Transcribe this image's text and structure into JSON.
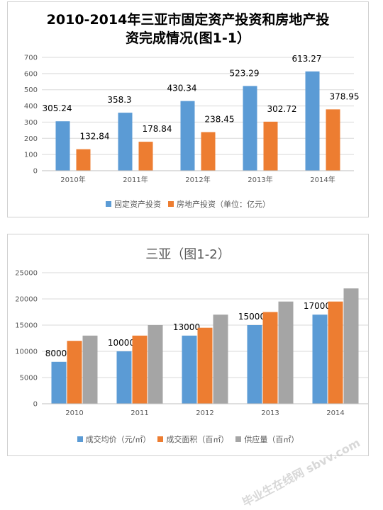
{
  "chart_data": [
    {
      "type": "bar",
      "title_line1": "2010-2014年三亚市固定资产投资和房地产投",
      "title_line2": "资完成情况(图1-1）",
      "categories": [
        "2010年",
        "2011年",
        "2012年",
        "2013年",
        "2014年"
      ],
      "series": [
        {
          "name": "固定资产投资",
          "color": "#5b9bd5",
          "values": [
            305.24,
            358.3,
            430.34,
            523.29,
            613.27
          ],
          "labels": [
            "305.24",
            "358.3",
            "430.34",
            "523.29",
            "613.27"
          ]
        },
        {
          "name": "房地产投资（单位：亿元）",
          "color": "#ed7d31",
          "values": [
            132.84,
            178.84,
            238.45,
            302.72,
            378.95
          ],
          "labels": [
            "132.84",
            "178.84",
            "238.45",
            "302.72",
            "378.95"
          ]
        }
      ],
      "yticks": [
        "0",
        "100",
        "200",
        "300",
        "400",
        "500",
        "600",
        "700"
      ],
      "ylim": [
        0,
        700
      ],
      "grid": true,
      "legend": "bottom"
    },
    {
      "type": "bar",
      "title": "三亚（图1-2）",
      "categories": [
        "2010",
        "2011",
        "2012",
        "2013",
        "2014"
      ],
      "series": [
        {
          "name": "成交均价（元/㎡）",
          "color": "#5b9bd5",
          "values": [
            8000,
            10000,
            13000,
            15000,
            17000
          ],
          "labels": [
            "8000",
            "10000",
            "13000",
            "15000",
            "17000"
          ]
        },
        {
          "name": "成交面积（百㎡）",
          "color": "#ed7d31",
          "values": [
            12000,
            13000,
            14500,
            17500,
            19500
          ],
          "labels": []
        },
        {
          "name": "供应量（百㎡）",
          "color": "#a5a5a5",
          "values": [
            13000,
            15000,
            17000,
            19500,
            22000
          ],
          "labels": []
        }
      ],
      "yticks": [
        "0",
        "5000",
        "10000",
        "15000",
        "20000",
        "25000"
      ],
      "ylim": [
        0,
        25000
      ],
      "grid": true,
      "legend": "bottom"
    }
  ],
  "watermark": "毕业生在线网 sbvv.com"
}
